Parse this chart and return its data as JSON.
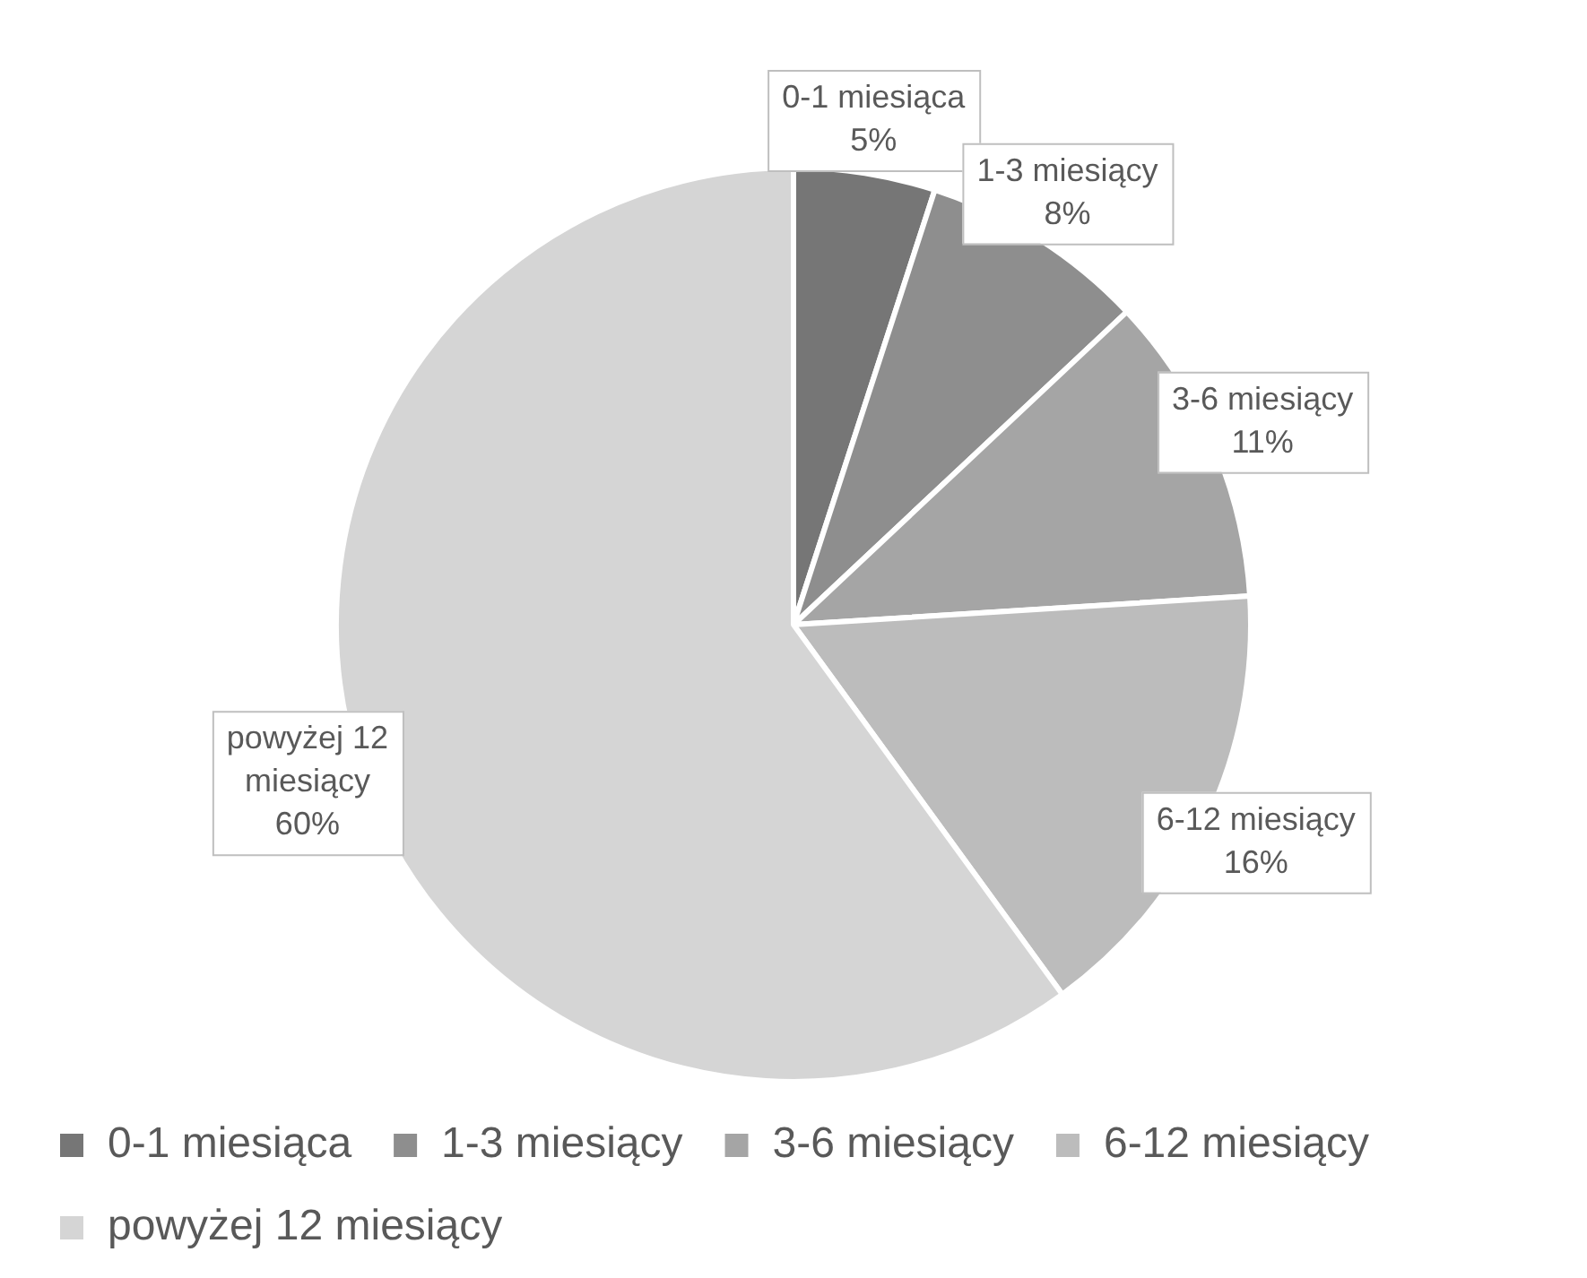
{
  "chart_data": {
    "type": "pie",
    "categories": [
      "0-1 miesiąca",
      "1-3 miesiący",
      "3-6 miesiący",
      "6-12 miesiący",
      "powyżej 12 miesiący"
    ],
    "values": [
      5,
      8,
      11,
      16,
      60
    ],
    "value_labels": [
      "5%",
      "8%",
      "11%",
      "16%",
      "60%"
    ],
    "colors": [
      "#767676",
      "#8e8e8e",
      "#a5a5a5",
      "#bcbcbc",
      "#d5d5d5"
    ],
    "legend": "bottom"
  }
}
